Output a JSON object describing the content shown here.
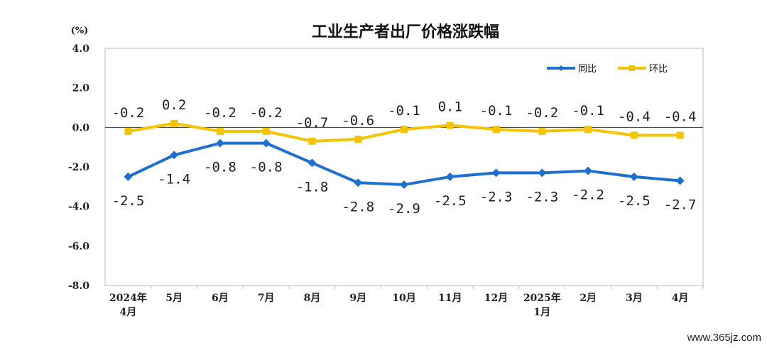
{
  "chart_data": {
    "type": "line",
    "title": "工业生产者出厂价格涨跌幅",
    "ylabel": "(%)",
    "xlabel": "",
    "ylim": [
      -8.0,
      4.0
    ],
    "yticks": [
      "4.0",
      "2.0",
      "0.0",
      "-2.0",
      "-4.0",
      "-6.0",
      "-8.0"
    ],
    "categories": [
      [
        "2024年",
        "4月"
      ],
      [
        "5月"
      ],
      [
        "6月"
      ],
      [
        "7月"
      ],
      [
        "8月"
      ],
      [
        "9月"
      ],
      [
        "10月"
      ],
      [
        "11月"
      ],
      [
        "12月"
      ],
      [
        "2025年",
        "1月"
      ],
      [
        "2月"
      ],
      [
        "3月"
      ],
      [
        "4月"
      ]
    ],
    "grid": false,
    "legend_position": "top-right",
    "series": [
      {
        "name": "同比",
        "color": "#1f6fd1",
        "marker": "diamond",
        "values": [
          -2.5,
          -1.4,
          -0.8,
          -0.8,
          -1.8,
          -2.8,
          -2.9,
          -2.5,
          -2.3,
          -2.3,
          -2.2,
          -2.5,
          -2.7
        ],
        "labels": [
          "-2.5",
          "-1.4",
          "-0.8",
          "-0.8",
          "-1.8",
          "-2.8",
          "-2.9",
          "-2.5",
          "-2.3",
          "-2.3",
          "-2.2",
          "-2.5",
          "-2.7"
        ]
      },
      {
        "name": "环比",
        "color": "#f5c400",
        "marker": "square",
        "values": [
          -0.2,
          0.2,
          -0.2,
          -0.2,
          -0.7,
          -0.6,
          -0.1,
          0.1,
          -0.1,
          -0.2,
          -0.1,
          -0.4,
          -0.4
        ],
        "labels": [
          "-0.2",
          "0.2",
          "-0.2",
          "-0.2",
          "-0.7",
          "-0.6",
          "-0.1",
          "0.1",
          "-0.1",
          "-0.2",
          "-0.1",
          "-0.4",
          "-0.4"
        ]
      }
    ]
  },
  "watermark": "www.365jz.com"
}
